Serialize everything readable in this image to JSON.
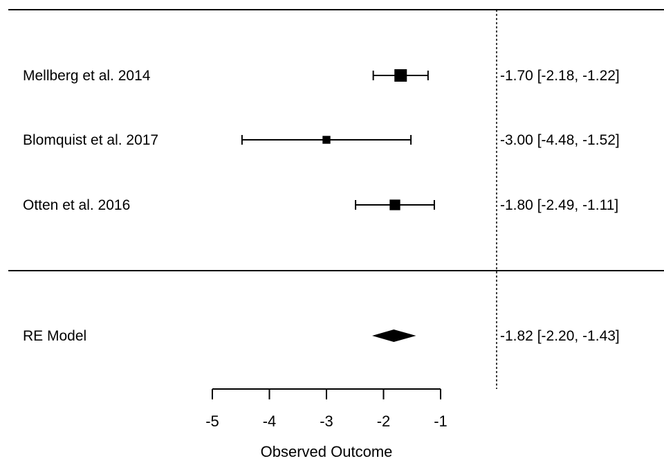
{
  "chart_data": {
    "type": "forest",
    "title": "",
    "xlabel": "Observed Outcome",
    "xlim": [
      -5,
      -1
    ],
    "x_ticks": [
      -5,
      -4,
      -3,
      -2,
      -1
    ],
    "x_tick_labels": [
      "-5",
      "-4",
      "-3",
      "-2",
      "-1"
    ],
    "reference_line": 0,
    "grid": false,
    "studies": [
      {
        "label": "Mellberg et al. 2014",
        "estimate": -1.7,
        "ci_lower": -2.18,
        "ci_upper": -1.22,
        "ci_text": "-1.70 [-2.18, -1.22]",
        "weight": 1.0
      },
      {
        "label": "Blomquist et al. 2017",
        "estimate": -3.0,
        "ci_lower": -4.48,
        "ci_upper": -1.52,
        "ci_text": "-3.00 [-4.48, -1.52]",
        "weight": 0.2
      },
      {
        "label": "Otten et al. 2016",
        "estimate": -1.8,
        "ci_lower": -2.49,
        "ci_upper": -1.11,
        "ci_text": "-1.80 [-2.49, -1.11]",
        "weight": 0.6
      }
    ],
    "summary": {
      "label": "RE Model",
      "estimate": -1.82,
      "ci_lower": -2.2,
      "ci_upper": -1.43,
      "ci_text": "-1.82 [-2.20, -1.43]"
    }
  }
}
